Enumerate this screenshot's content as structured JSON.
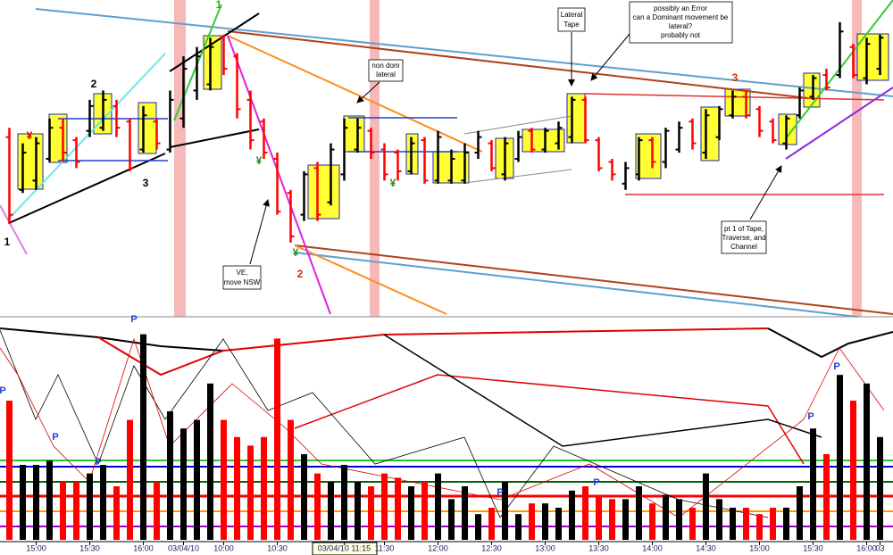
{
  "chart_data": [
    {
      "type": "ohlc",
      "open": [
        57,
        40,
        43,
        50,
        60,
        56,
        59,
        60,
        67,
        62,
        53,
        62,
        53,
        63,
        72,
        74,
        89,
        83,
        69,
        62,
        50,
        39,
        32,
        47,
        36,
        45,
        53,
        59,
        53,
        52,
        46,
        56,
        43,
        43,
        43,
        52,
        55,
        45,
        50,
        59,
        53,
        55,
        57,
        69,
        56,
        49,
        42,
        45,
        56,
        49,
        53,
        62,
        52,
        57,
        64,
        70,
        66,
        62,
        55,
        64,
        70,
        77,
        77,
        86,
        76,
        79
      ],
      "high": [
        60,
        55,
        57,
        63,
        63,
        57,
        69,
        72,
        69,
        63,
        67,
        63,
        72,
        83,
        86,
        89,
        90,
        84,
        72,
        63,
        52,
        40,
        46,
        49,
        55,
        63,
        63,
        60,
        55,
        53,
        57,
        57,
        59,
        53,
        55,
        59,
        56,
        57,
        59,
        60,
        60,
        62,
        70,
        70,
        57,
        50,
        49,
        57,
        57,
        60,
        62,
        63,
        66,
        67,
        72,
        72,
        67,
        63,
        64,
        73,
        77,
        79,
        94,
        87,
        89,
        90
      ],
      "low": [
        29,
        39,
        40,
        49,
        49,
        47,
        57,
        59,
        57,
        46,
        52,
        53,
        52,
        60,
        69,
        72,
        77,
        63,
        53,
        50,
        32,
        23,
        30,
        30,
        35,
        43,
        52,
        50,
        43,
        43,
        45,
        42,
        42,
        42,
        42,
        50,
        46,
        43,
        49,
        52,
        52,
        53,
        55,
        55,
        46,
        43,
        40,
        43,
        47,
        47,
        52,
        53,
        50,
        56,
        63,
        63,
        57,
        55,
        53,
        63,
        69,
        72,
        76,
        76,
        74,
        77
      ],
      "close": [
        32,
        52,
        55,
        60,
        52,
        49,
        67,
        69,
        60,
        47,
        64,
        55,
        69,
        79,
        83,
        86,
        79,
        66,
        56,
        52,
        33,
        25,
        45,
        32,
        53,
        60,
        60,
        52,
        45,
        46,
        55,
        43,
        57,
        50,
        52,
        57,
        47,
        55,
        57,
        53,
        59,
        60,
        69,
        56,
        47,
        45,
        47,
        56,
        49,
        59,
        60,
        55,
        64,
        66,
        70,
        64,
        59,
        56,
        63,
        72,
        76,
        73,
        91,
        77,
        87,
        89
      ],
      "up_color": "#000000",
      "down_color": "#ff0000",
      "ylim": [
        0,
        100
      ]
    },
    {
      "type": "bar",
      "categories": [
        null,
        null,
        "15:00",
        null,
        null,
        null,
        "15:30",
        null,
        null,
        null,
        "16:00",
        null,
        null,
        "03/04/10",
        null,
        null,
        "10:00",
        null,
        null,
        null,
        "10:30",
        null,
        null,
        null,
        null,
        "03/04/10 11:15",
        null,
        null,
        "11:30",
        null,
        null,
        null,
        "12:00",
        null,
        null,
        null,
        "12:30",
        null,
        null,
        null,
        "13:00",
        null,
        null,
        null,
        "13:30",
        null,
        null,
        null,
        "14:00",
        null,
        null,
        null,
        "14:30",
        null,
        null,
        null,
        "15:00",
        null,
        null,
        null,
        "15:30",
        null,
        null,
        null,
        "16:00",
        "03"
      ],
      "values": [
        65,
        35,
        35,
        37,
        27,
        27,
        31,
        35,
        25,
        56,
        96,
        27,
        60,
        52,
        56,
        73,
        56,
        48,
        44,
        48,
        94,
        56,
        40,
        31,
        27,
        35,
        27,
        25,
        31,
        29,
        25,
        27,
        31,
        19,
        25,
        12,
        15,
        27,
        12,
        17,
        17,
        15,
        23,
        25,
        21,
        19,
        19,
        25,
        17,
        21,
        19,
        15,
        31,
        19,
        15,
        15,
        12,
        15,
        15,
        25,
        52,
        40,
        77,
        65,
        73,
        48
      ],
      "ylim": [
        0,
        100
      ]
    }
  ],
  "annotations": {
    "wave_labels": [
      "1",
      "2",
      "3",
      "1",
      "2",
      "3"
    ],
    "markers": [
      "¥",
      "¥",
      "¥",
      "¥"
    ],
    "p_markers": [
      "P",
      "P",
      "P",
      "P",
      "P",
      "P",
      "P",
      "P"
    ],
    "notes": {
      "non_dom": [
        "non dom",
        "lateral"
      ],
      "lateral_tape": [
        "Lateral",
        "Tape"
      ],
      "error": [
        "possibly an Error",
        "can a Dominant movement be",
        "lateral?",
        "probably not"
      ],
      "ve": [
        "VE,",
        "move NSW"
      ],
      "pt1": [
        "pt 1 of Tape,",
        "Traverse, and",
        "Channel"
      ]
    }
  }
}
